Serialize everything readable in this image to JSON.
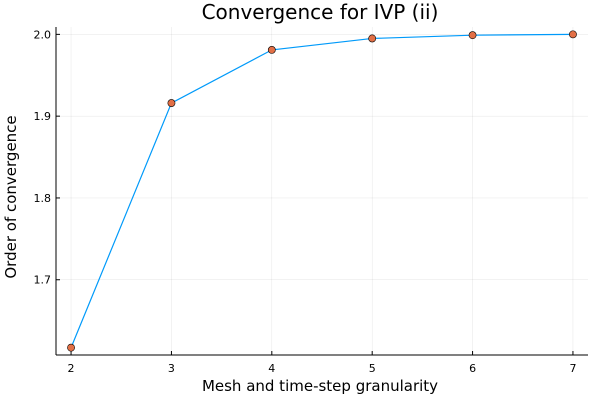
{
  "chart_data": {
    "type": "line",
    "title": "Convergence for IVP (ii)",
    "xlabel": "Mesh and time-step granularity",
    "ylabel": "Order of convergence",
    "x": [
      2,
      3,
      4,
      5,
      6,
      7
    ],
    "series": [
      {
        "values": [
          1.617,
          1.916,
          1.981,
          1.995,
          1.999,
          2.0
        ],
        "line_color": "#009AFA",
        "marker_color": "#E26F46"
      }
    ],
    "xticks": [
      "2",
      "3",
      "4",
      "5",
      "6",
      "7"
    ],
    "yticks": [
      "1.7",
      "1.8",
      "1.9",
      "2.0"
    ],
    "xlim": [
      1.85,
      7.15
    ],
    "ylim": [
      1.608,
      2.009
    ],
    "grid": true,
    "legend": "none"
  }
}
